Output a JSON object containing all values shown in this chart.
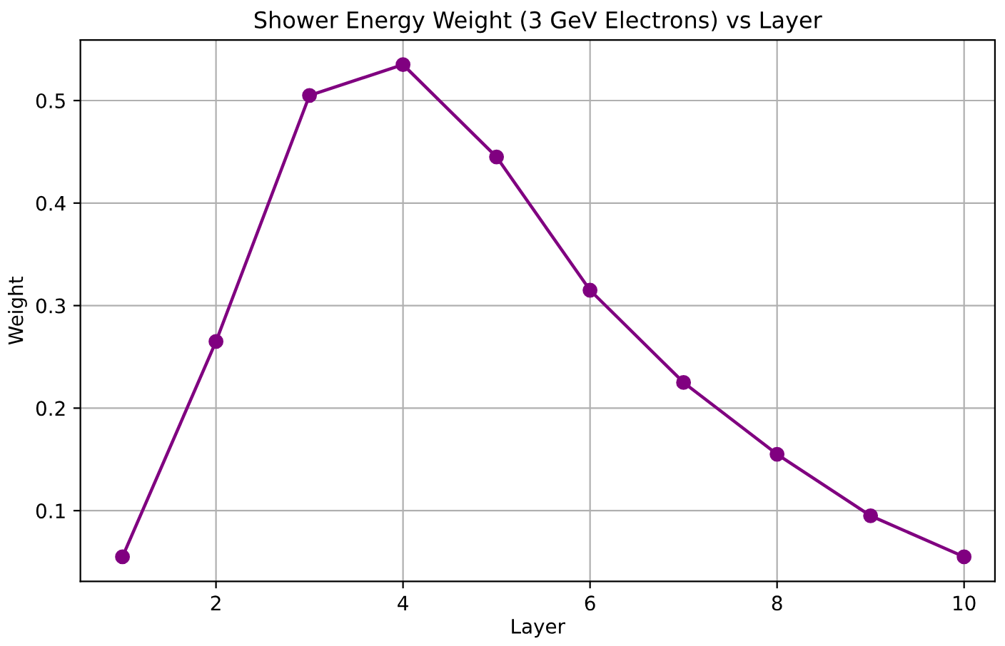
{
  "chart_data": {
    "type": "line",
    "title": "Shower Energy Weight (3 GeV Electrons) vs Layer",
    "xlabel": "Layer",
    "ylabel": "Weight",
    "x": [
      1,
      2,
      3,
      4,
      5,
      6,
      7,
      8,
      9,
      10
    ],
    "series": [
      {
        "color": "#800080",
        "values": [
          0.055,
          0.265,
          0.505,
          0.535,
          0.445,
          0.315,
          0.225,
          0.155,
          0.095,
          0.055
        ]
      }
    ],
    "xlim": [
      0.55,
      10.33
    ],
    "xticks": [
      2,
      4,
      6,
      8,
      10
    ],
    "ylim": [
      0.031,
      0.559
    ],
    "yticks": [
      0.1,
      0.2,
      0.3,
      0.4,
      0.5
    ],
    "grid": true,
    "marker": "circle",
    "line_style": "solid"
  }
}
